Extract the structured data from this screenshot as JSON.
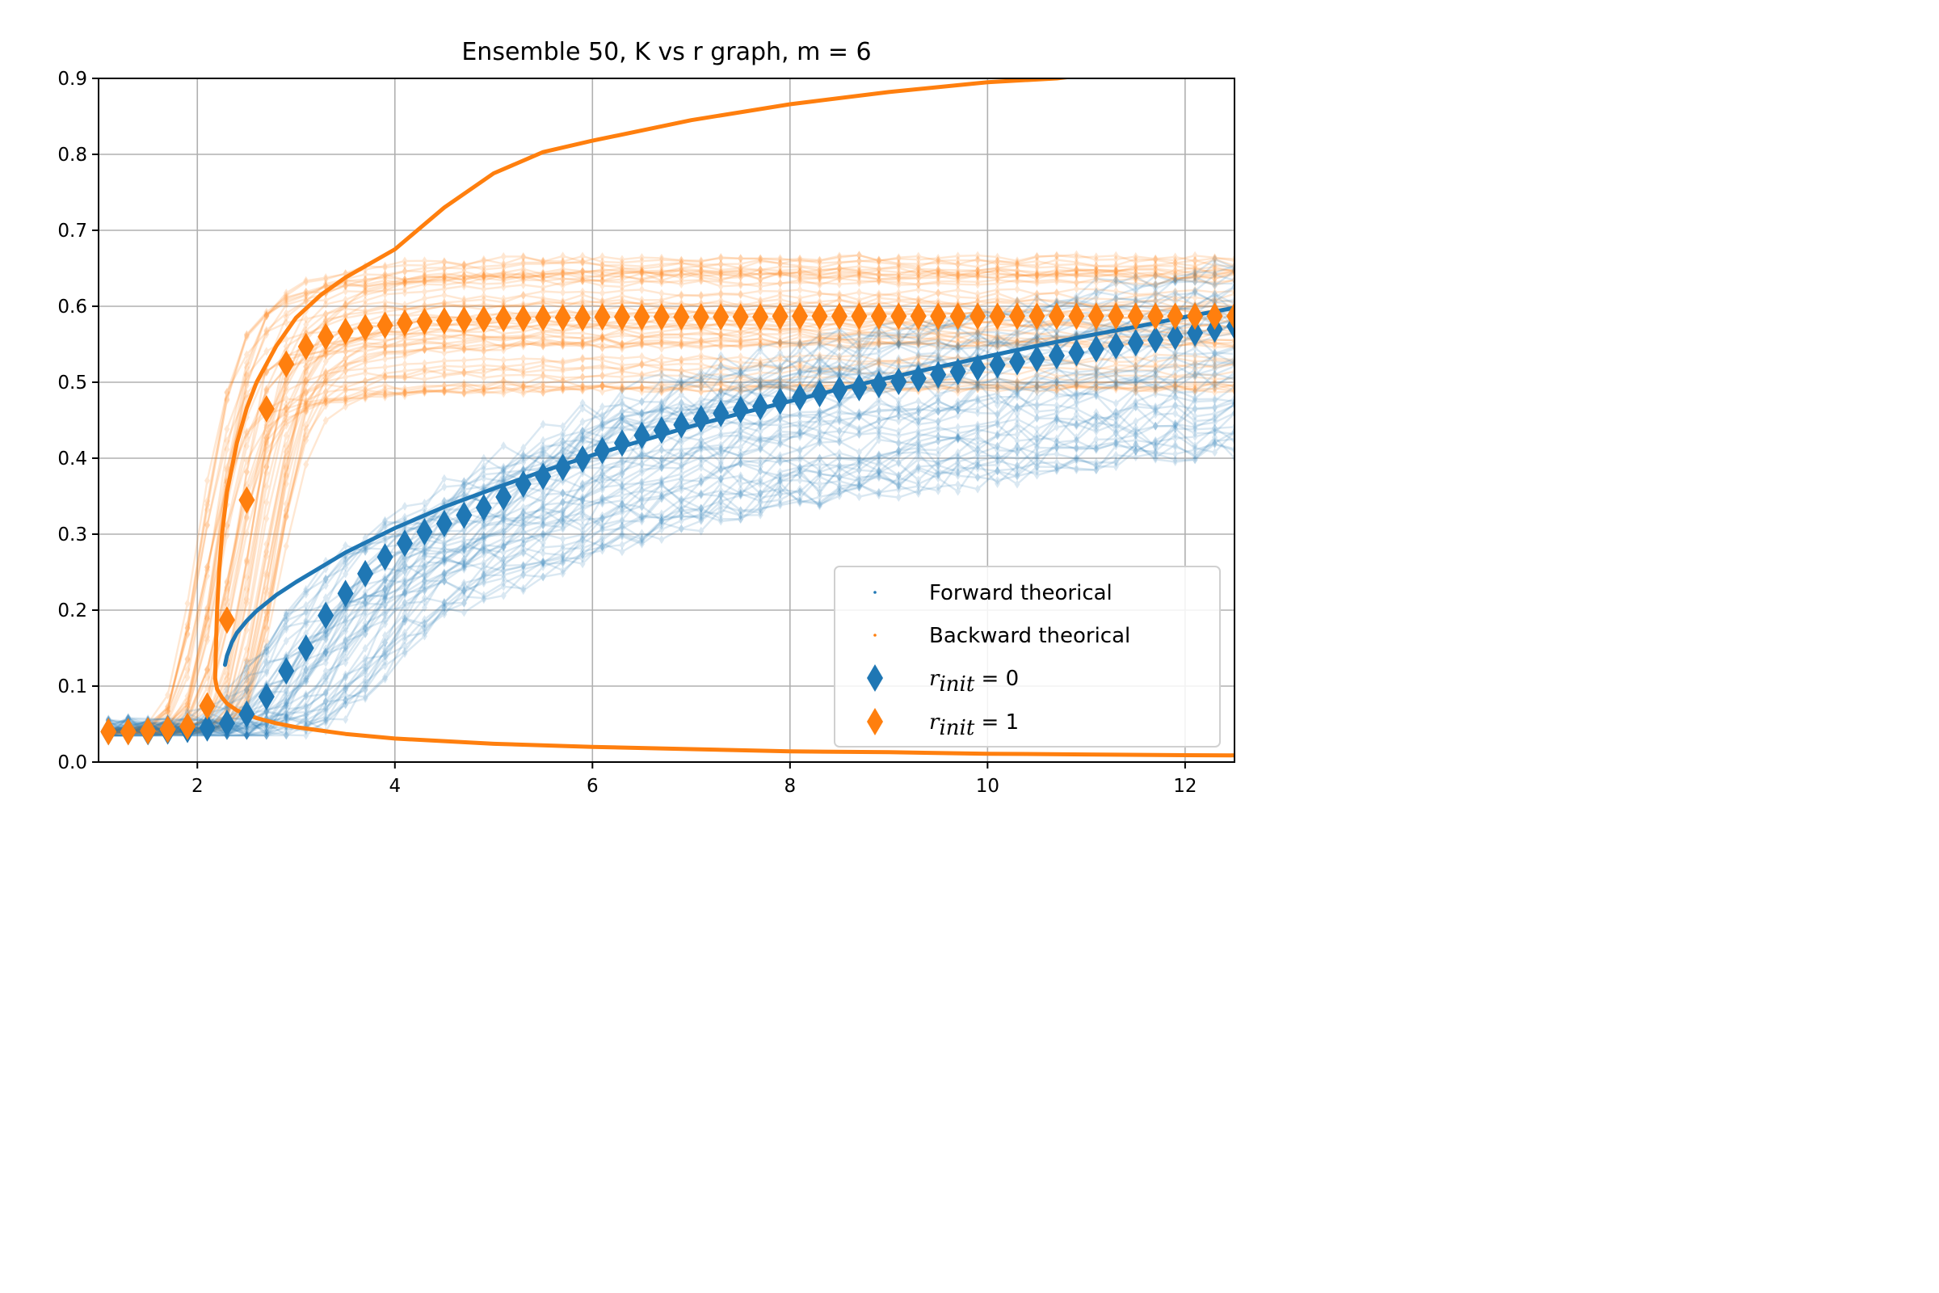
{
  "chart_data": {
    "type": "line",
    "title": "Ensemble 50, K vs r graph, m = 6",
    "xlabel": "",
    "ylabel": "",
    "xlim": [
      1.0,
      12.5
    ],
    "ylim": [
      0.0,
      0.9
    ],
    "xticks": [
      2,
      4,
      6,
      8,
      10,
      12
    ],
    "xtick_labels": [
      "2",
      "4",
      "6",
      "8",
      "10",
      "12"
    ],
    "yticks": [
      0.0,
      0.1,
      0.2,
      0.3,
      0.4,
      0.5,
      0.6,
      0.7,
      0.8,
      0.9
    ],
    "ytick_labels": [
      "0.0",
      "0.1",
      "0.2",
      "0.3",
      "0.4",
      "0.5",
      "0.6",
      "0.7",
      "0.8",
      "0.9"
    ],
    "grid": true,
    "legend_position": "bottom-right",
    "colors": {
      "forward": "#1f77b4",
      "backward": "#ff7f0e"
    },
    "legend": [
      {
        "label": "Forward theorical",
        "marker": "small-dot",
        "color": "#1f77b4"
      },
      {
        "label": "Backward theorical",
        "marker": "small-dot",
        "color": "#ff7f0e"
      },
      {
        "label_base": "r",
        "label_sub": "init",
        "label_rest": " = 0",
        "marker": "thin-diamond",
        "color": "#1f77b4"
      },
      {
        "label_base": "r",
        "label_sub": "init",
        "label_rest": " = 1",
        "marker": "thin-diamond",
        "color": "#ff7f0e"
      }
    ],
    "K": [
      1.1,
      1.3,
      1.5,
      1.7,
      1.9,
      2.1,
      2.3,
      2.5,
      2.7,
      2.9,
      3.1,
      3.3,
      3.5,
      3.7,
      3.9,
      4.1,
      4.3,
      4.5,
      4.7,
      4.9,
      5.1,
      5.3,
      5.5,
      5.7,
      5.9,
      6.1,
      6.3,
      6.5,
      6.7,
      6.9,
      7.1,
      7.3,
      7.5,
      7.7,
      7.9,
      8.1,
      8.3,
      8.5,
      8.7,
      8.9,
      9.1,
      9.3,
      9.5,
      9.7,
      9.9,
      10.1,
      10.3,
      10.5,
      10.7,
      10.9,
      11.1,
      11.3,
      11.5,
      11.7,
      11.9,
      12.1,
      12.3,
      12.5
    ],
    "series": [
      {
        "name": "r_init = 0",
        "color": "#1f77b4",
        "marker": "thin-diamond",
        "values": [
          0.04,
          0.04,
          0.04,
          0.041,
          0.043,
          0.045,
          0.051,
          0.063,
          0.086,
          0.12,
          0.15,
          0.193,
          0.222,
          0.248,
          0.27,
          0.288,
          0.303,
          0.314,
          0.325,
          0.335,
          0.349,
          0.366,
          0.376,
          0.388,
          0.399,
          0.41,
          0.42,
          0.43,
          0.437,
          0.444,
          0.452,
          0.459,
          0.464,
          0.468,
          0.475,
          0.48,
          0.485,
          0.49,
          0.493,
          0.497,
          0.501,
          0.505,
          0.51,
          0.514,
          0.519,
          0.523,
          0.527,
          0.531,
          0.535,
          0.539,
          0.544,
          0.548,
          0.552,
          0.556,
          0.56,
          0.565,
          0.57,
          0.574
        ]
      },
      {
        "name": "r_init = 1",
        "color": "#ff7f0e",
        "marker": "thin-diamond",
        "values": [
          0.04,
          0.04,
          0.041,
          0.043,
          0.047,
          0.074,
          0.187,
          0.345,
          0.465,
          0.524,
          0.547,
          0.56,
          0.567,
          0.572,
          0.575,
          0.578,
          0.58,
          0.581,
          0.582,
          0.583,
          0.584,
          0.584,
          0.585,
          0.585,
          0.585,
          0.586,
          0.586,
          0.586,
          0.586,
          0.586,
          0.586,
          0.586,
          0.586,
          0.586,
          0.587,
          0.587,
          0.587,
          0.587,
          0.587,
          0.587,
          0.587,
          0.587,
          0.587,
          0.587,
          0.587,
          0.587,
          0.587,
          0.587,
          0.587,
          0.587,
          0.587,
          0.587,
          0.587,
          0.587,
          0.587,
          0.587,
          0.587,
          0.587
        ]
      }
    ],
    "ensemble": {
      "members_per_direction": 50
    },
    "theory": {
      "forward": {
        "name": "Forward theorical",
        "K": [
          2.28,
          2.3,
          2.35,
          2.4,
          2.5,
          2.6,
          2.8,
          3.0,
          3.5,
          4.0,
          4.5,
          5.0,
          5.5,
          6.0,
          6.5,
          7.0,
          7.5,
          8.0,
          8.5,
          9.0,
          9.5,
          10.0,
          10.5,
          11.0,
          11.5,
          12.0,
          12.5
        ],
        "r": [
          0.128,
          0.14,
          0.158,
          0.17,
          0.186,
          0.199,
          0.22,
          0.237,
          0.276,
          0.308,
          0.336,
          0.36,
          0.383,
          0.404,
          0.423,
          0.442,
          0.459,
          0.475,
          0.491,
          0.506,
          0.52,
          0.534,
          0.548,
          0.561,
          0.573,
          0.586,
          0.598
        ]
      },
      "backward_upper": {
        "name": "Backward theorical",
        "K": [
          2.18,
          2.19,
          2.2,
          2.22,
          2.25,
          2.3,
          2.4,
          2.5,
          2.6,
          2.8,
          3.0,
          3.25,
          3.5,
          4.0,
          4.5,
          5.0,
          5.5,
          6.0,
          7.0,
          8.0,
          9.0,
          10.0,
          10.7,
          11.5,
          12.5
        ],
        "r": [
          0.11,
          0.16,
          0.2,
          0.25,
          0.3,
          0.355,
          0.42,
          0.466,
          0.5,
          0.548,
          0.585,
          0.615,
          0.638,
          0.675,
          0.73,
          0.775,
          0.803,
          0.818,
          0.845,
          0.866,
          0.882,
          0.895,
          0.9,
          0.912,
          0.925
        ]
      },
      "backward_lower": {
        "name": "Backward theorical",
        "K": [
          2.18,
          2.2,
          2.25,
          2.3,
          2.4,
          2.6,
          2.8,
          3.0,
          3.5,
          4.0,
          5.0,
          6.0,
          7.0,
          8.0,
          9.0,
          10.0,
          11.0,
          12.0,
          12.5
        ],
        "r": [
          0.11,
          0.096,
          0.085,
          0.077,
          0.068,
          0.058,
          0.051,
          0.046,
          0.037,
          0.031,
          0.024,
          0.02,
          0.017,
          0.014,
          0.013,
          0.011,
          0.01,
          0.009,
          0.0088
        ]
      }
    }
  }
}
